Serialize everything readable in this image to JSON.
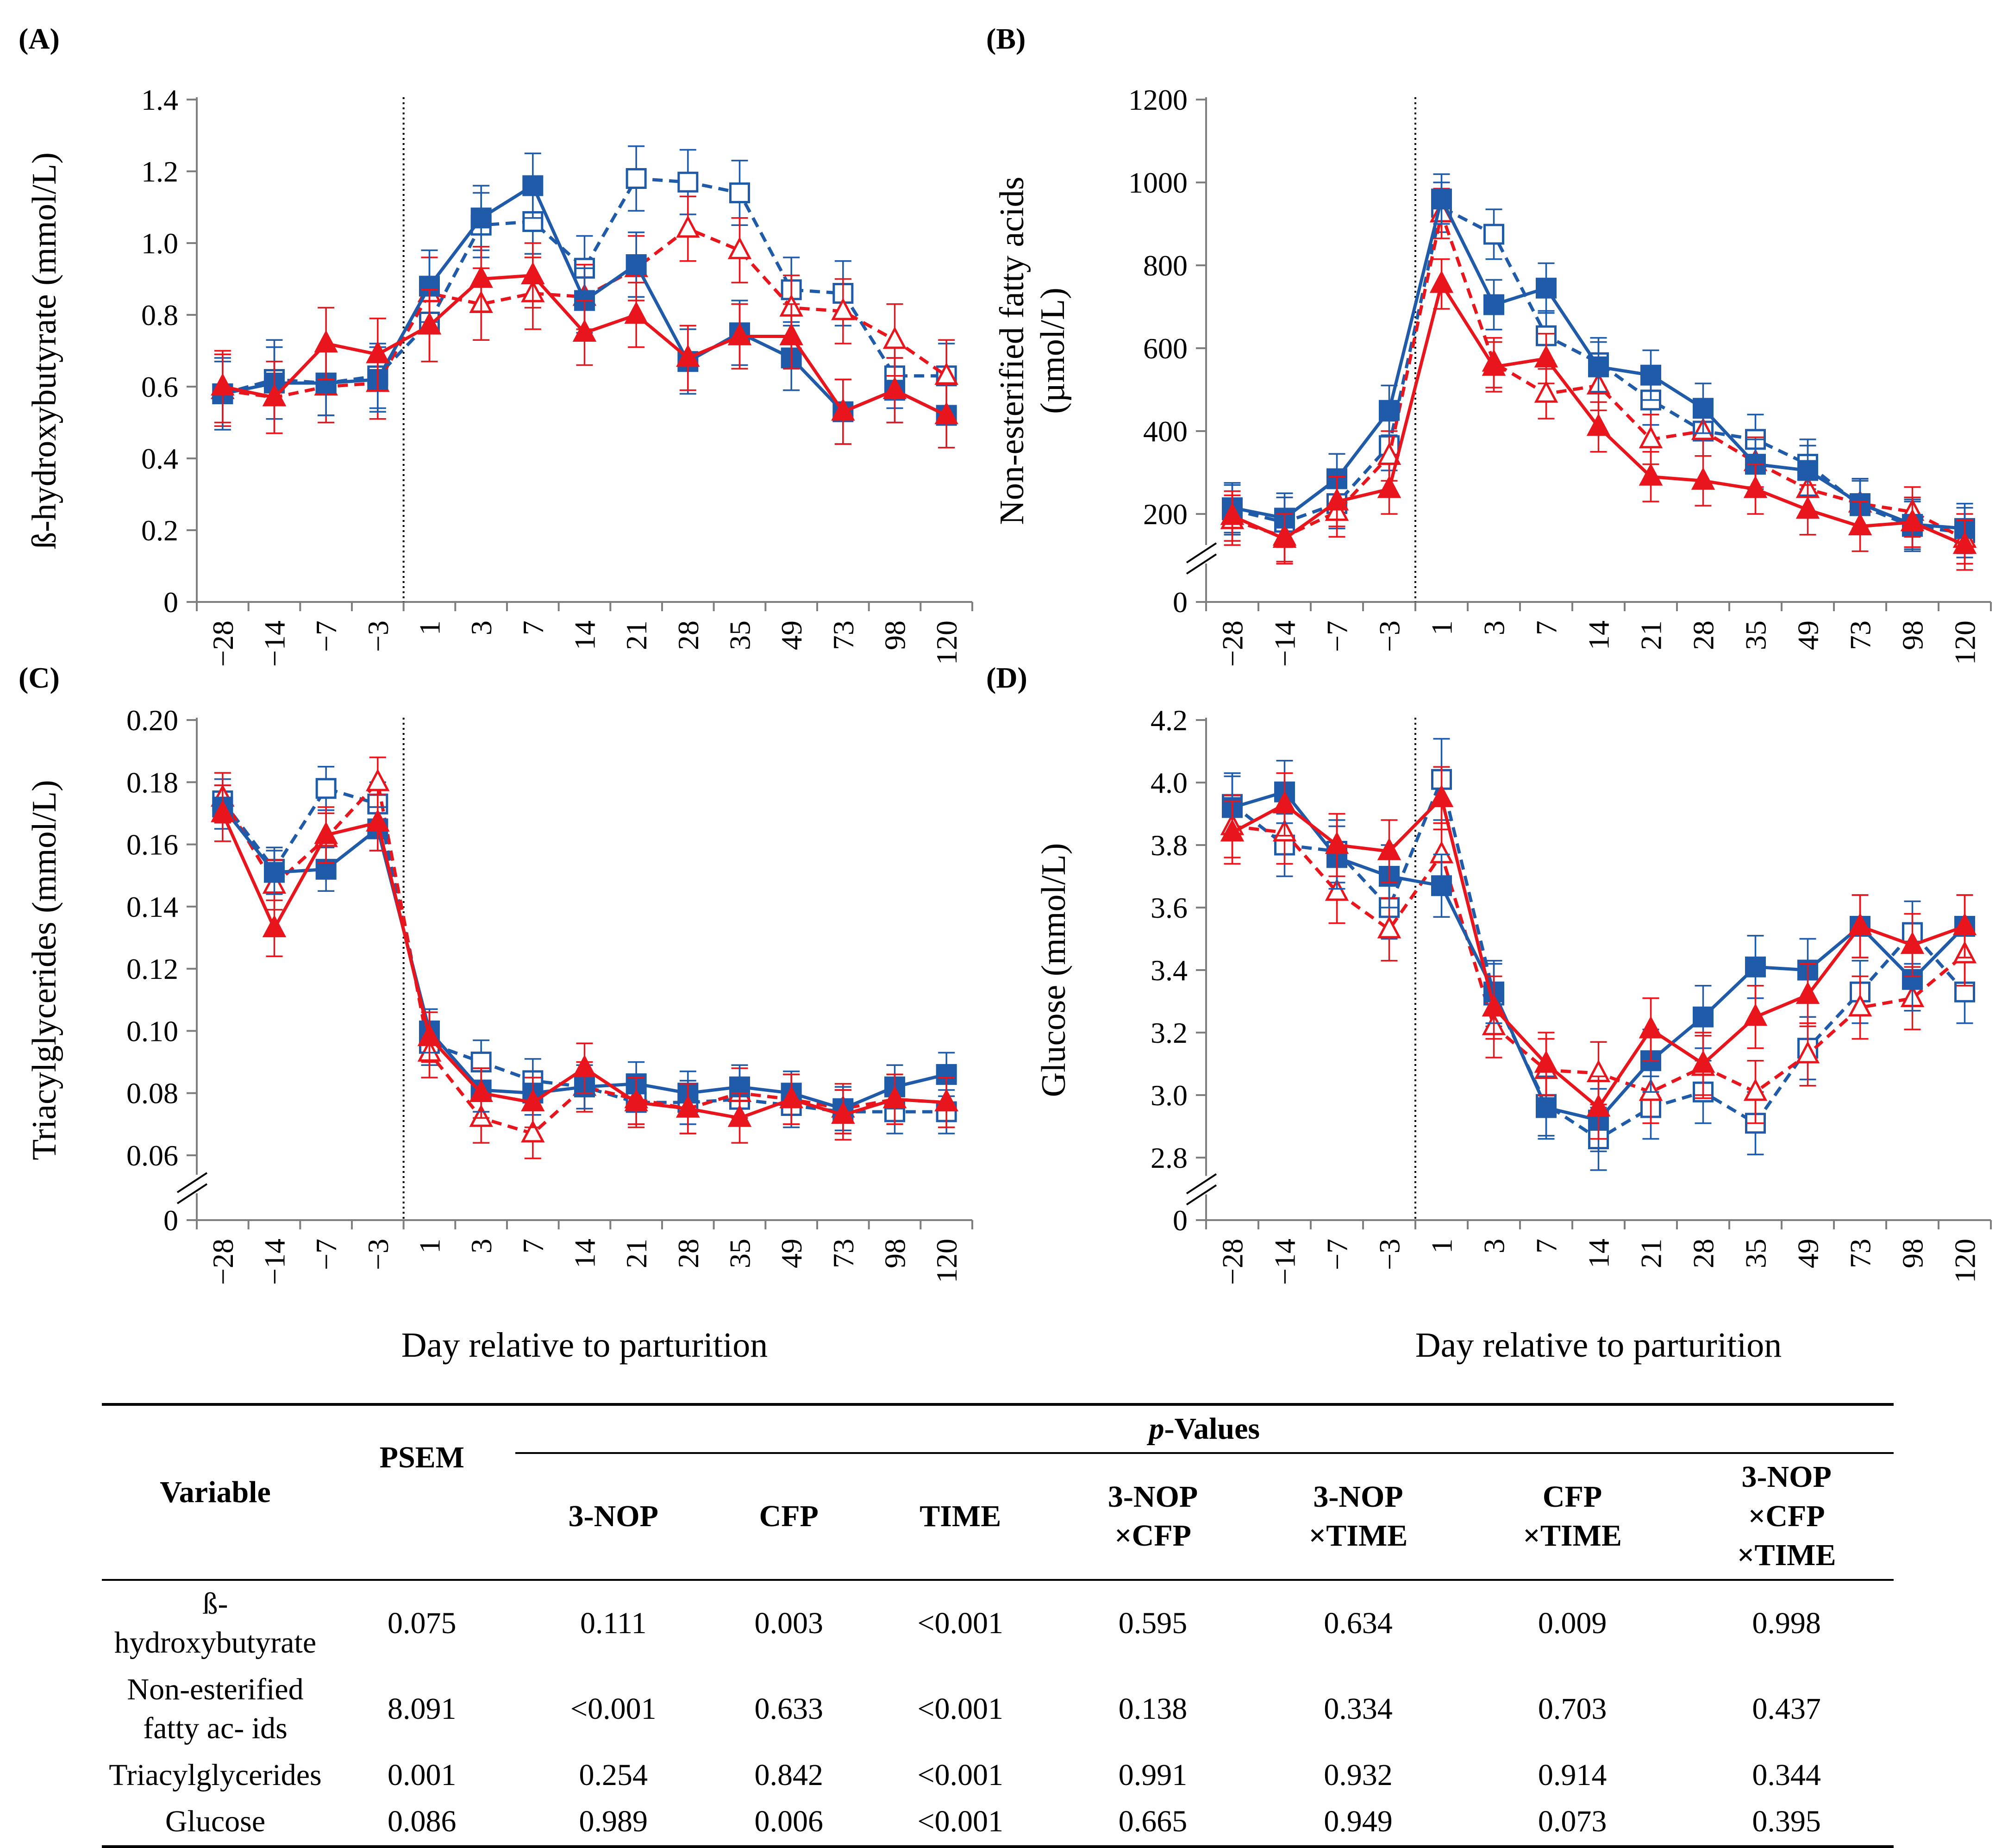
{
  "chart_data": [
    {
      "type": "line",
      "panel_label": "(A)",
      "ylabel": "ß-hydroxybutyrate (mmol/L)",
      "xlabel": "",
      "categories": [
        "−28",
        "−14",
        "−7",
        "−3",
        "1",
        "3",
        "7",
        "14",
        "21",
        "28",
        "35",
        "49",
        "73",
        "98",
        "120"
      ],
      "yticks": [
        "0",
        "0.2",
        "0.4",
        "0.6",
        "0.8",
        "1.0",
        "1.2",
        "1.4"
      ],
      "ylim": [
        0,
        1.4
      ],
      "axis_break": false,
      "series": [
        {
          "name": "blue-solid-filled",
          "values": [
            0.58,
            0.61,
            0.61,
            0.62,
            0.88,
            1.07,
            1.16,
            0.84,
            0.94,
            0.67,
            0.75,
            0.68,
            0.53,
            0.59,
            0.52
          ],
          "errors": [
            0.1,
            0.1,
            0.09,
            0.09,
            0.1,
            0.09,
            0.09,
            0.09,
            0.09,
            0.09,
            0.09,
            0.09,
            0.09,
            0.09,
            0.09
          ]
        },
        {
          "name": "blue-dashed-open",
          "values": [
            0.58,
            0.62,
            0.61,
            0.63,
            0.78,
            1.05,
            1.06,
            0.93,
            1.18,
            1.17,
            1.14,
            0.87,
            0.86,
            0.63,
            0.63
          ],
          "errors": [
            0.09,
            0.11,
            0.09,
            0.09,
            0.11,
            0.09,
            0.09,
            0.09,
            0.09,
            0.09,
            0.09,
            0.09,
            0.09,
            0.09,
            0.09
          ]
        },
        {
          "name": "red-solid-filled",
          "values": [
            0.6,
            0.57,
            0.72,
            0.69,
            0.77,
            0.9,
            0.91,
            0.75,
            0.8,
            0.68,
            0.74,
            0.74,
            0.53,
            0.59,
            0.52
          ],
          "errors": [
            0.1,
            0.1,
            0.1,
            0.1,
            0.1,
            0.09,
            0.09,
            0.09,
            0.09,
            0.09,
            0.09,
            0.09,
            0.09,
            0.09,
            0.09
          ]
        },
        {
          "name": "red-dashed-open",
          "values": [
            0.59,
            0.57,
            0.6,
            0.61,
            0.86,
            0.83,
            0.86,
            0.85,
            0.93,
            1.04,
            0.98,
            0.82,
            0.81,
            0.73,
            0.63
          ],
          "errors": [
            0.1,
            0.1,
            0.1,
            0.1,
            0.1,
            0.1,
            0.1,
            0.09,
            0.09,
            0.09,
            0.09,
            0.09,
            0.09,
            0.1,
            0.1
          ]
        }
      ]
    },
    {
      "type": "line",
      "panel_label": "(B)",
      "ylabel": "Non-esterified fatty acids (µmol/L)",
      "xlabel": "",
      "categories": [
        "−28",
        "−14",
        "−7",
        "−3",
        "1",
        "3",
        "7",
        "14",
        "21",
        "28",
        "35",
        "49",
        "73",
        "98",
        "120"
      ],
      "yticks": [
        "0",
        "200",
        "400",
        "600",
        "800",
        "1000",
        "1200"
      ],
      "ylim": [
        0,
        1200
      ],
      "axis_break": true,
      "series": [
        {
          "name": "blue-solid-filled",
          "values": [
            215,
            190,
            285,
            450,
            960,
            705,
            745,
            555,
            535,
            455,
            320,
            305,
            225,
            175,
            165
          ],
          "errors": [
            60,
            60,
            60,
            60,
            60,
            60,
            60,
            60,
            60,
            60,
            60,
            60,
            60,
            60,
            60
          ]
        },
        {
          "name": "blue-dashed-open",
          "values": [
            210,
            180,
            225,
            365,
            940,
            875,
            630,
            565,
            475,
            400,
            380,
            320,
            220,
            170,
            155
          ],
          "errors": [
            60,
            60,
            60,
            60,
            60,
            60,
            60,
            60,
            60,
            60,
            60,
            60,
            60,
            60,
            60
          ]
        },
        {
          "name": "red-solid-filled",
          "values": [
            195,
            140,
            230,
            260,
            755,
            555,
            575,
            410,
            290,
            280,
            260,
            210,
            170,
            180,
            125
          ],
          "errors": [
            60,
            60,
            60,
            60,
            60,
            60,
            60,
            60,
            60,
            60,
            60,
            60,
            60,
            60,
            60
          ]
        },
        {
          "name": "red-dashed-open",
          "values": [
            185,
            145,
            205,
            340,
            925,
            565,
            490,
            510,
            380,
            400,
            325,
            260,
            225,
            205,
            140
          ],
          "errors": [
            60,
            60,
            60,
            60,
            60,
            60,
            60,
            60,
            60,
            60,
            60,
            60,
            60,
            60,
            60
          ]
        }
      ]
    },
    {
      "type": "line",
      "panel_label": "(C)",
      "ylabel": "Triacylglycerides (mmol/L)",
      "xlabel": "Day relative to parturition",
      "categories": [
        "−28",
        "−14",
        "−7",
        "−3",
        "1",
        "3",
        "7",
        "14",
        "21",
        "28",
        "35",
        "49",
        "73",
        "98",
        "120"
      ],
      "yticks": [
        "0",
        "0.06",
        "0.08",
        "0.10",
        "0.12",
        "0.14",
        "0.16",
        "0.18",
        "0.20"
      ],
      "ylim": [
        0,
        0.2
      ],
      "axis_break": true,
      "series": [
        {
          "name": "blue-solid-filled",
          "values": [
            0.172,
            0.151,
            0.152,
            0.165,
            0.1,
            0.081,
            0.08,
            0.082,
            0.083,
            0.08,
            0.082,
            0.08,
            0.075,
            0.082,
            0.086
          ],
          "errors": [
            0.007,
            0.007,
            0.007,
            0.007,
            0.007,
            0.007,
            0.007,
            0.007,
            0.007,
            0.007,
            0.007,
            0.007,
            0.007,
            0.007,
            0.007
          ]
        },
        {
          "name": "blue-dashed-open",
          "values": [
            0.174,
            0.152,
            0.178,
            0.173,
            0.096,
            0.09,
            0.084,
            0.082,
            0.077,
            0.077,
            0.078,
            0.076,
            0.074,
            0.074,
            0.074
          ],
          "errors": [
            0.007,
            0.007,
            0.007,
            0.007,
            0.007,
            0.007,
            0.007,
            0.007,
            0.007,
            0.007,
            0.007,
            0.007,
            0.007,
            0.007,
            0.007
          ]
        },
        {
          "name": "red-solid-filled",
          "values": [
            0.17,
            0.133,
            0.163,
            0.167,
            0.098,
            0.08,
            0.077,
            0.088,
            0.077,
            0.075,
            0.072,
            0.078,
            0.073,
            0.078,
            0.077
          ],
          "errors": [
            0.009,
            0.009,
            0.009,
            0.009,
            0.008,
            0.008,
            0.008,
            0.008,
            0.008,
            0.008,
            0.008,
            0.008,
            0.008,
            0.008,
            0.008
          ]
        },
        {
          "name": "red-dashed-open",
          "values": [
            0.175,
            0.147,
            0.162,
            0.18,
            0.093,
            0.072,
            0.067,
            0.082,
            0.078,
            0.075,
            0.08,
            0.078,
            0.075,
            0.078,
            0.077
          ],
          "errors": [
            0.008,
            0.008,
            0.008,
            0.008,
            0.008,
            0.008,
            0.008,
            0.008,
            0.008,
            0.008,
            0.008,
            0.008,
            0.008,
            0.008,
            0.008
          ]
        }
      ]
    },
    {
      "type": "line",
      "panel_label": "(D)",
      "ylabel": "Glucose (mmol/L)",
      "xlabel": "Day relative to parturition",
      "categories": [
        "−28",
        "−14",
        "−7",
        "−3",
        "1",
        "3",
        "7",
        "14",
        "21",
        "28",
        "35",
        "49",
        "73",
        "98",
        "120"
      ],
      "yticks": [
        "0",
        "2.8",
        "3.0",
        "3.2",
        "3.4",
        "3.6",
        "3.8",
        "4.0",
        "4.2"
      ],
      "ylim": [
        0,
        4.2
      ],
      "axis_break": true,
      "series": [
        {
          "name": "blue-solid-filled",
          "values": [
            3.92,
            3.97,
            3.76,
            3.7,
            3.67,
            3.33,
            2.96,
            2.92,
            3.11,
            3.25,
            3.41,
            3.4,
            3.54,
            3.37,
            3.54
          ],
          "errors": [
            0.1,
            0.1,
            0.1,
            0.1,
            0.1,
            0.1,
            0.1,
            0.1,
            0.1,
            0.1,
            0.1,
            0.1,
            0.1,
            0.1,
            0.1
          ]
        },
        {
          "name": "blue-dashed-open",
          "values": [
            3.93,
            3.8,
            3.78,
            3.6,
            4.01,
            3.32,
            2.97,
            2.86,
            2.96,
            3.01,
            2.91,
            3.15,
            3.33,
            3.52,
            3.33
          ],
          "errors": [
            0.1,
            0.1,
            0.1,
            0.1,
            0.13,
            0.1,
            0.1,
            0.1,
            0.1,
            0.1,
            0.1,
            0.1,
            0.1,
            0.1,
            0.1
          ]
        },
        {
          "name": "red-solid-filled",
          "values": [
            3.84,
            3.93,
            3.8,
            3.78,
            3.95,
            3.28,
            3.1,
            2.96,
            3.21,
            3.1,
            3.25,
            3.32,
            3.54,
            3.48,
            3.54
          ],
          "errors": [
            0.1,
            0.1,
            0.1,
            0.1,
            0.1,
            0.1,
            0.1,
            0.1,
            0.1,
            0.1,
            0.1,
            0.1,
            0.1,
            0.1,
            0.1
          ]
        },
        {
          "name": "red-dashed-open",
          "values": [
            3.86,
            3.84,
            3.65,
            3.53,
            3.77,
            3.22,
            3.08,
            3.07,
            3.01,
            3.09,
            3.01,
            3.13,
            3.28,
            3.31,
            3.45
          ],
          "errors": [
            0.1,
            0.1,
            0.1,
            0.1,
            0.1,
            0.1,
            0.1,
            0.1,
            0.1,
            0.1,
            0.1,
            0.1,
            0.1,
            0.1,
            0.1
          ]
        }
      ]
    }
  ],
  "colors": {
    "blue": "#1f5ba8",
    "red": "#e8151d"
  },
  "table": {
    "pvalues_header": "-Values",
    "pvalues_italic": "p",
    "headers": {
      "variable": "Variable",
      "psem": "PSEM",
      "nop": "3-NOP",
      "cfp": "CFP",
      "time": "TIME",
      "nop_cfp_1": "3-NOP",
      "nop_cfp_2": "×CFP",
      "nop_time_1": "3-NOP",
      "nop_time_2": "×TIME",
      "cfp_time_1": "CFP",
      "cfp_time_2": "×TIME",
      "all_1": "3-NOP",
      "all_2": "×CFP",
      "all_3": "×TIME"
    },
    "rows": [
      {
        "variable": "ß-hydroxybutyrate",
        "psem": "0.075",
        "nop": "0.111",
        "cfp": "0.003",
        "time": "<0.001",
        "nop_cfp": "0.595",
        "nop_time": "0.634",
        "cfp_time": "0.009",
        "all": "0.998"
      },
      {
        "variable": "Non-esterified fatty ac- ids",
        "psem": "8.091",
        "nop": "<0.001",
        "cfp": "0.633",
        "time": "<0.001",
        "nop_cfp": "0.138",
        "nop_time": "0.334",
        "cfp_time": "0.703",
        "all": "0.437"
      },
      {
        "variable": "Triacylglycerides",
        "psem": "0.001",
        "nop": "0.254",
        "cfp": "0.842",
        "time": "<0.001",
        "nop_cfp": "0.991",
        "nop_time": "0.932",
        "cfp_time": "0.914",
        "all": "0.344"
      },
      {
        "variable": "Glucose",
        "psem": "0.086",
        "nop": "0.989",
        "cfp": "0.006",
        "time": "<0.001",
        "nop_cfp": "0.665",
        "nop_time": "0.949",
        "cfp_time": "0.073",
        "all": "0.395"
      }
    ]
  }
}
